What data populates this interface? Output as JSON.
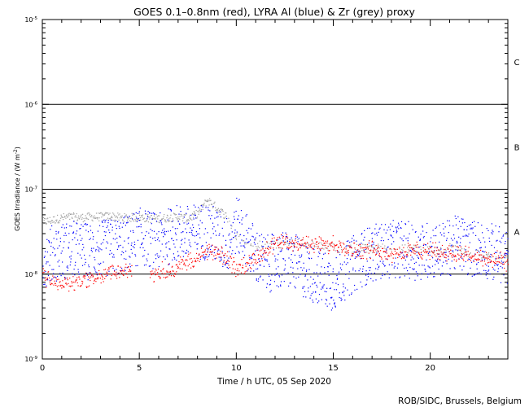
{
  "chart_data": {
    "type": "scatter",
    "title": "GOES 0.1–0.8nm (red), LYRA Al (blue) & Zr (grey) proxy",
    "xlabel": "Time / h UTC, 05 Sep 2020",
    "ylabel_main": "GOES Irradiance / (W m",
    "ylabel_sup": "-2",
    "ylabel_close": ")",
    "credit": "ROB/SIDC, Brussels, Belgium",
    "xlim": [
      0,
      24
    ],
    "ylim_log10": [
      -9,
      -5
    ],
    "y_scale": "log",
    "x_ticks": [
      {
        "value": 0,
        "label": "0"
      },
      {
        "value": 5,
        "label": "5"
      },
      {
        "value": 10,
        "label": "10"
      },
      {
        "value": 15,
        "label": "15"
      },
      {
        "value": 20,
        "label": "20"
      }
    ],
    "y_ticks": [
      {
        "exp": -9,
        "label": "-9"
      },
      {
        "exp": -8,
        "label": "-8"
      },
      {
        "exp": -7,
        "label": "-7"
      },
      {
        "exp": -6,
        "label": "-6"
      },
      {
        "exp": -5,
        "label": "-5"
      }
    ],
    "class_thresholds": [
      {
        "exp": -8
      },
      {
        "exp": -7
      },
      {
        "exp": -6
      }
    ],
    "class_labels": [
      {
        "label": "A",
        "exp": -7.5
      },
      {
        "label": "B",
        "exp": -6.5
      },
      {
        "label": "C",
        "exp": -5.5
      }
    ],
    "colors": {
      "goes": "#ff0000",
      "al": "#0000ff",
      "zr": "#a0a0a0",
      "axis": "#000000"
    },
    "series": [
      {
        "name": "GOES 0.1–0.8nm",
        "color": "#ff0000",
        "x": [
          0.0,
          0.5,
          1.0,
          1.5,
          2.0,
          2.5,
          3.0,
          3.5,
          4.0,
          4.4,
          5.6,
          6.0,
          6.5,
          7.0,
          7.5,
          8.0,
          8.5,
          9.0,
          9.5,
          10.0,
          10.5,
          11.0,
          11.5,
          12.0,
          12.5,
          13.0,
          13.5,
          14.0,
          14.5,
          15.0,
          15.5,
          16.0,
          16.5,
          17.0,
          17.5,
          18.0,
          18.5,
          19.0,
          19.5,
          20.0,
          20.5,
          21.0,
          21.5,
          22.0,
          22.5,
          23.0,
          23.5,
          24.0
        ],
        "logy": [
          -8.02,
          -8.08,
          -8.12,
          -8.1,
          -8.07,
          -8.05,
          -8.02,
          -7.98,
          -7.96,
          -7.95,
          -8.0,
          -7.98,
          -7.94,
          -7.9,
          -7.85,
          -7.82,
          -7.72,
          -7.75,
          -7.82,
          -7.92,
          -7.88,
          -7.82,
          -7.72,
          -7.64,
          -7.62,
          -7.63,
          -7.64,
          -7.65,
          -7.64,
          -7.66,
          -7.67,
          -7.7,
          -7.72,
          -7.7,
          -7.73,
          -7.75,
          -7.74,
          -7.72,
          -7.73,
          -7.72,
          -7.74,
          -7.73,
          -7.76,
          -7.78,
          -7.8,
          -7.82,
          -7.84,
          -7.85
        ],
        "gaps": [
          [
            4.6,
            5.5
          ]
        ]
      },
      {
        "name": "LYRA Al",
        "color": "#0000ff",
        "x": [
          0.0,
          0.5,
          1.0,
          1.5,
          2.0,
          2.5,
          3.0,
          3.5,
          4.0,
          4.5,
          5.0,
          5.5,
          6.0,
          6.5,
          7.0,
          7.5,
          8.0,
          8.5,
          9.0,
          9.5,
          10.0,
          10.5,
          11.0,
          11.5,
          12.0,
          12.5,
          13.0,
          13.5,
          14.0,
          14.5,
          15.0,
          15.5,
          16.0,
          16.5,
          17.0,
          17.5,
          18.0,
          18.5,
          19.0,
          19.5,
          20.0,
          20.5,
          21.0,
          21.5,
          22.0,
          22.5,
          23.0,
          23.5,
          24.0
        ],
        "logy": [
          -7.82,
          -7.75,
          -7.72,
          -7.7,
          -7.72,
          -7.73,
          -7.7,
          -7.68,
          -7.66,
          -7.62,
          -7.55,
          -7.58,
          -7.62,
          -7.55,
          -7.5,
          -7.52,
          -7.5,
          -7.48,
          -7.55,
          -7.65,
          -7.4,
          -7.6,
          -7.78,
          -7.88,
          -7.85,
          -7.82,
          -7.86,
          -7.95,
          -8.0,
          -8.05,
          -8.1,
          -7.98,
          -7.88,
          -7.8,
          -7.75,
          -7.72,
          -7.7,
          -7.7,
          -7.72,
          -7.74,
          -7.7,
          -7.72,
          -7.68,
          -7.62,
          -7.7,
          -7.68,
          -7.72,
          -7.76,
          -7.8
        ],
        "spread": 0.34
      },
      {
        "name": "Zr",
        "color": "#a0a0a0",
        "x": [
          0.0,
          0.5,
          1.0,
          1.5,
          2.0,
          2.5,
          3.0,
          3.5,
          4.0,
          4.5,
          5.0,
          5.5,
          6.0,
          6.5,
          7.0,
          7.5,
          8.0,
          8.5,
          9.0,
          9.5,
          10.0,
          10.5,
          11.0,
          11.5,
          12.0,
          12.5,
          13.0,
          13.5,
          14.0,
          14.5,
          15.0,
          15.5,
          16.0,
          16.5,
          17.0,
          17.5,
          18.0,
          18.5,
          19.0,
          19.5,
          20.0,
          20.5,
          21.0,
          21.5,
          22.0,
          22.5,
          23.0,
          23.5,
          24.0
        ],
        "logy": [
          -7.38,
          -7.36,
          -7.33,
          -7.32,
          -7.33,
          -7.32,
          -7.32,
          -7.31,
          -7.33,
          -7.33,
          -7.32,
          -7.34,
          -7.34,
          -7.33,
          -7.32,
          -7.34,
          -7.28,
          -7.12,
          -7.22,
          -7.32,
          -7.55,
          -7.62,
          -7.64,
          -7.66,
          -7.65,
          -7.63,
          -7.63,
          -7.64,
          -7.64,
          -7.66,
          -7.68,
          -7.7,
          -7.7,
          -7.68,
          -7.7,
          -7.67,
          -7.68,
          -7.69,
          -7.7,
          -7.7,
          -7.71,
          -7.72,
          -7.68,
          -7.72,
          -7.74,
          -7.76,
          -7.78,
          -7.8,
          -7.82
        ],
        "spread": 0.05
      }
    ]
  }
}
